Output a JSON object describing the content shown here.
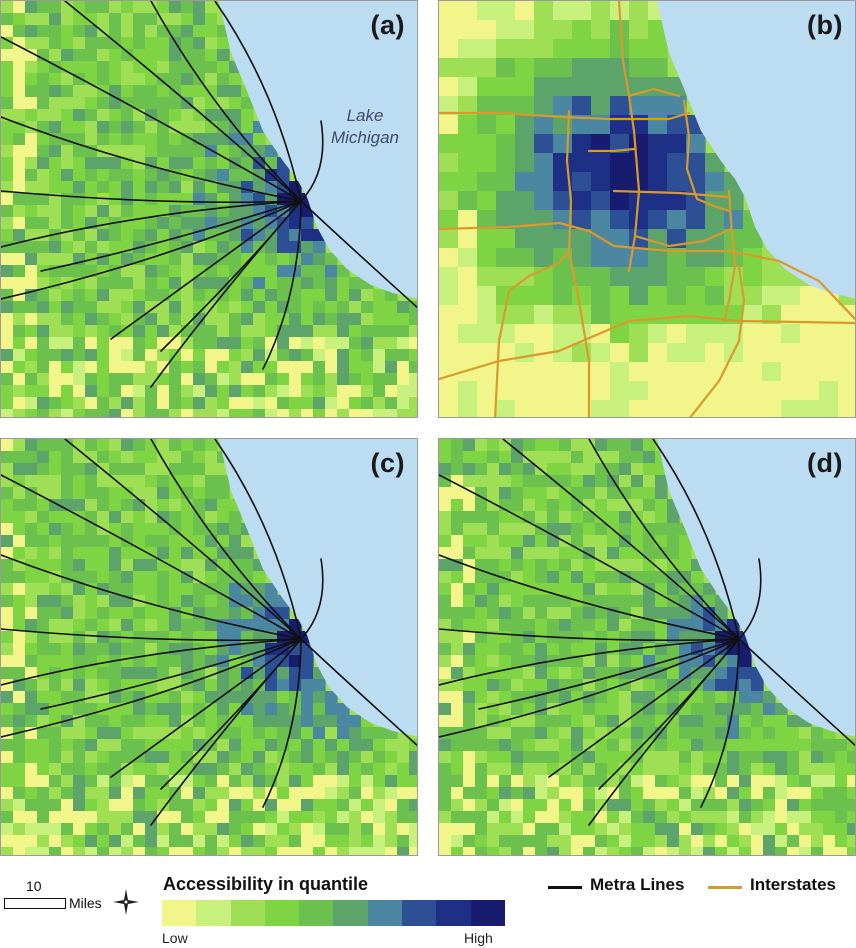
{
  "panels": [
    {
      "id": "a",
      "label": "(a)",
      "network": "metra",
      "core_strength": 0.55
    },
    {
      "id": "b",
      "label": "(b)",
      "network": "interstate",
      "core_strength": 1.0
    },
    {
      "id": "c",
      "label": "(c)",
      "network": "metra",
      "core_strength": 0.5
    },
    {
      "id": "d",
      "label": "(d)",
      "network": "metra",
      "core_strength": 0.45
    }
  ],
  "lake_label": "Lake Michigan",
  "legend": {
    "title": "Accessibility in quantile",
    "low_label": "Low",
    "high_label": "High",
    "ramp_colors": [
      "#f2f58a",
      "#c8f07d",
      "#9fdf55",
      "#7fd443",
      "#6cc04e",
      "#5ca46a",
      "#4b87a0",
      "#2c4f96",
      "#1e2f86",
      "#171c6e"
    ],
    "lake_color": "#bcdcf2",
    "metra_label": "Metra Lines",
    "metra_color": "#111111",
    "interstate_label": "Interstates",
    "interstate_color": "#d99a2b"
  },
  "scale": {
    "value": "10",
    "unit": "Miles"
  }
}
